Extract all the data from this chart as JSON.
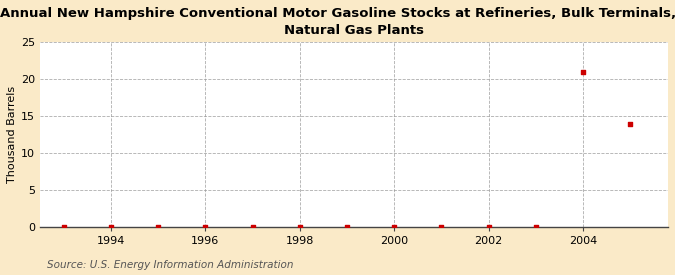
{
  "title_line1": "Annual New Hampshire Conventional Motor Gasoline Stocks at Refineries, Bulk Terminals, and",
  "title_line2": "Natural Gas Plants",
  "ylabel": "Thousand Barrels",
  "source": "Source: U.S. Energy Information Administration",
  "background_color": "#faeac8",
  "plot_background_color": "#ffffff",
  "years": [
    1993,
    1994,
    1995,
    1996,
    1997,
    1998,
    1999,
    2000,
    2001,
    2002,
    2003,
    2004,
    2005
  ],
  "values": [
    0,
    0,
    0,
    0,
    0,
    0,
    0,
    0,
    0,
    0,
    0,
    21,
    14
  ],
  "marker_color": "#cc0000",
  "grid_color": "#999999",
  "xlim": [
    1992.5,
    2005.8
  ],
  "ylim": [
    0,
    25
  ],
  "yticks": [
    0,
    5,
    10,
    15,
    20,
    25
  ],
  "xticks": [
    1994,
    1996,
    1998,
    2000,
    2002,
    2004
  ],
  "title_fontsize": 9.5,
  "ylabel_fontsize": 8,
  "tick_fontsize": 8,
  "source_fontsize": 7.5
}
